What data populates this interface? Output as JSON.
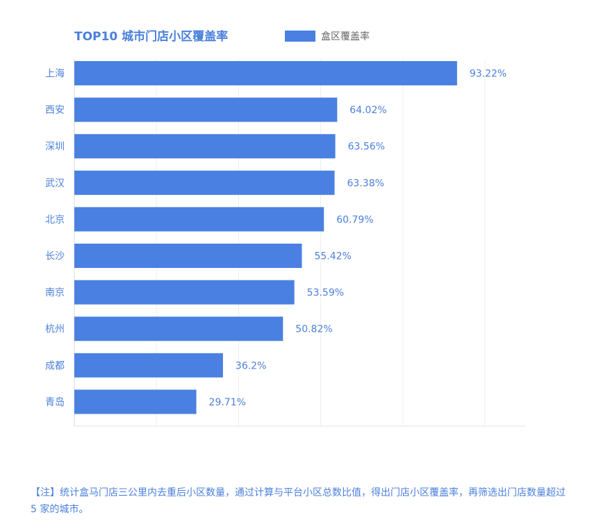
{
  "chart_data": {
    "type": "bar",
    "orientation": "horizontal",
    "title": "TOP10 城市门店小区覆盖率",
    "categories": [
      "上海",
      "西安",
      "深圳",
      "武汉",
      "北京",
      "长沙",
      "南京",
      "杭州",
      "成都",
      "青岛"
    ],
    "series": [
      {
        "name": "盒区覆盖率",
        "values": [
          93.22,
          64.02,
          63.56,
          63.38,
          60.79,
          55.42,
          53.59,
          50.82,
          36.2,
          29.71
        ],
        "labels": [
          "93.22%",
          "64.02%",
          "63.56%",
          "63.38%",
          "60.79%",
          "55.42%",
          "53.59%",
          "50.82%",
          "36.2%",
          "29.71%"
        ]
      }
    ],
    "xlim": [
      0,
      110
    ],
    "grid": true,
    "legend_position": "top",
    "bar_color": "#4a80e1",
    "text_color": "#4a7fdc"
  },
  "note": "【注】统计盒马门店三公里内去重后小区数量，通过计算与平台小区总数比值，得出门店小区覆盖率，再筛选出门店数量超过 5 家的城市。"
}
